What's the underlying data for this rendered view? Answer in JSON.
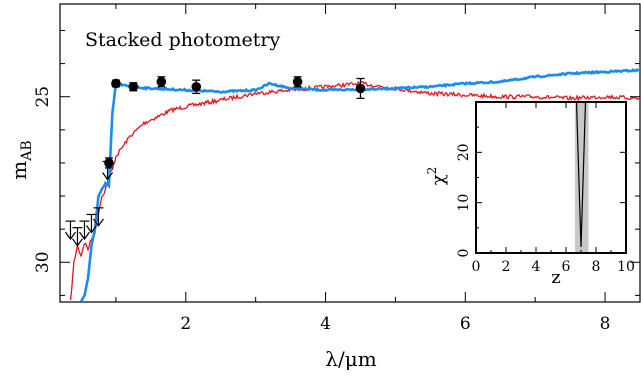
{
  "chart_data": [
    {
      "type": "line",
      "title": "Stacked photometry",
      "xlabel": "λ/μm",
      "ylabel": "m_AB",
      "ylabel_main": "m",
      "ylabel_sub": "AB",
      "xlim": [
        0.2,
        8.5
      ],
      "ylim": [
        31.2,
        22.2
      ],
      "y_inverted": true,
      "x_ticks": [
        2,
        4,
        6,
        8
      ],
      "x_tick_labels": [
        "2",
        "4",
        "6",
        "8"
      ],
      "y_ticks": [
        25,
        30
      ],
      "y_tick_labels": [
        "25",
        "30"
      ],
      "grid": false,
      "series": [
        {
          "color": "#e8141c",
          "values": [
            [
              0.35,
              31.2
            ],
            [
              0.4,
              30.0
            ],
            [
              0.45,
              29.5
            ],
            [
              0.5,
              29.8
            ],
            [
              0.55,
              29.4
            ],
            [
              0.6,
              29.6
            ],
            [
              0.65,
              29.3
            ],
            [
              0.7,
              29.1
            ],
            [
              0.75,
              28.5
            ],
            [
              0.8,
              28.0
            ],
            [
              0.85,
              27.8
            ],
            [
              0.9,
              27.4
            ],
            [
              0.95,
              27.2
            ],
            [
              1.0,
              26.8
            ],
            [
              1.1,
              26.5
            ],
            [
              1.2,
              26.2
            ],
            [
              1.4,
              25.8
            ],
            [
              1.6,
              25.6
            ],
            [
              1.8,
              25.4
            ],
            [
              2.0,
              25.3
            ],
            [
              2.5,
              25.1
            ],
            [
              3.0,
              24.9
            ],
            [
              3.5,
              24.8
            ],
            [
              4.0,
              24.7
            ],
            [
              4.5,
              24.6
            ],
            [
              5.0,
              24.75
            ],
            [
              5.5,
              24.9
            ],
            [
              6.0,
              24.95
            ],
            [
              6.5,
              25.0
            ],
            [
              7.0,
              25.0
            ],
            [
              7.5,
              25.05
            ],
            [
              8.0,
              25.0
            ],
            [
              8.5,
              25.05
            ]
          ]
        },
        {
          "color": "#1a8cf0",
          "values": [
            [
              0.5,
              31.2
            ],
            [
              0.55,
              31.0
            ],
            [
              0.6,
              30.5
            ],
            [
              0.65,
              29.5
            ],
            [
              0.7,
              29.0
            ],
            [
              0.75,
              28.0
            ],
            [
              0.78,
              27.9
            ],
            [
              0.8,
              27.8
            ],
            [
              0.85,
              27.6
            ],
            [
              0.9,
              27.7
            ],
            [
              0.95,
              25.5
            ],
            [
              1.0,
              24.6
            ],
            [
              1.2,
              24.7
            ],
            [
              1.5,
              24.75
            ],
            [
              2.0,
              24.8
            ],
            [
              2.5,
              24.85
            ],
            [
              3.0,
              24.8
            ],
            [
              3.2,
              24.6
            ],
            [
              3.5,
              24.75
            ],
            [
              4.0,
              24.8
            ],
            [
              4.5,
              24.78
            ],
            [
              5.0,
              24.75
            ],
            [
              5.5,
              24.7
            ],
            [
              6.0,
              24.6
            ],
            [
              6.5,
              24.55
            ],
            [
              7.0,
              24.4
            ],
            [
              7.5,
              24.3
            ],
            [
              8.0,
              24.25
            ],
            [
              8.5,
              24.2
            ]
          ]
        }
      ],
      "points": [
        {
          "x": 1.0,
          "y": 24.6,
          "err": 0.1
        },
        {
          "x": 1.25,
          "y": 24.7,
          "err": 0.12
        },
        {
          "x": 1.65,
          "y": 24.55,
          "err": 0.15
        },
        {
          "x": 2.15,
          "y": 24.7,
          "err": 0.2
        },
        {
          "x": 3.6,
          "y": 24.55,
          "err": 0.15
        },
        {
          "x": 4.5,
          "y": 24.75,
          "err": 0.3
        },
        {
          "x": 0.9,
          "y": 27.0,
          "err": 0.15
        }
      ],
      "upper_limits": [
        {
          "x": 0.35,
          "y": 29.3
        },
        {
          "x": 0.45,
          "y": 29.5
        },
        {
          "x": 0.55,
          "y": 29.3
        },
        {
          "x": 0.65,
          "y": 29.1
        },
        {
          "x": 0.75,
          "y": 28.9
        },
        {
          "x": 0.88,
          "y": 27.5
        }
      ]
    },
    {
      "type": "line",
      "xlabel": "z",
      "ylabel": "χ²",
      "ylabel_main": "χ",
      "ylabel_sup": "2",
      "xlim": [
        0,
        10
      ],
      "ylim": [
        0,
        30
      ],
      "x_ticks": [
        0,
        2,
        4,
        6,
        8,
        10
      ],
      "x_tick_labels": [
        "0",
        "2",
        "4",
        "6",
        "8",
        "10"
      ],
      "y_ticks": [
        0,
        10,
        20
      ],
      "y_tick_labels": [
        "0",
        "10",
        "20"
      ],
      "shaded_range": [
        6.6,
        7.5
      ],
      "shade_color": "#c8c8c8",
      "series": [
        {
          "color": "#000000",
          "values": [
            [
              6.7,
              30
            ],
            [
              7.0,
              1.2
            ],
            [
              7.3,
              30
            ]
          ]
        }
      ]
    }
  ]
}
